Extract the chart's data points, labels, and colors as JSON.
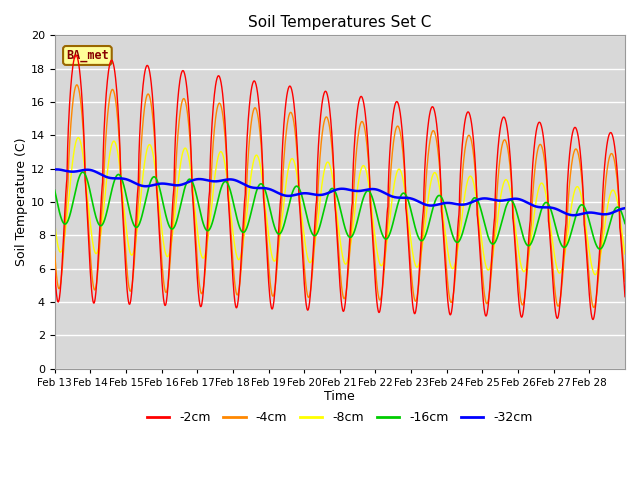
{
  "title": "Soil Temperatures Set C",
  "xlabel": "Time",
  "ylabel": "Soil Temperature (C)",
  "ylim": [
    0,
    20
  ],
  "yticks": [
    0,
    2,
    4,
    6,
    8,
    10,
    12,
    14,
    16,
    18,
    20
  ],
  "x_labels": [
    "Feb 13",
    "Feb 14",
    "Feb 15",
    "Feb 16",
    "Feb 17",
    "Feb 18",
    "Feb 19",
    "Feb 20",
    "Feb 21",
    "Feb 22",
    "Feb 23",
    "Feb 24",
    "Feb 25",
    "Feb 26",
    "Feb 27",
    "Feb 28"
  ],
  "colors": {
    "-2cm": "#ff0000",
    "-4cm": "#ff8800",
    "-8cm": "#ffff00",
    "-16cm": "#00cc00",
    "-32cm": "#0000ff"
  },
  "legend_labels": [
    "-2cm",
    "-4cm",
    "-8cm",
    "-16cm",
    "-32cm"
  ],
  "annotation_text": "BA_met",
  "annotation_bg": "#ffff99",
  "annotation_border": "#996600",
  "plot_bg": "#d8d8d8"
}
